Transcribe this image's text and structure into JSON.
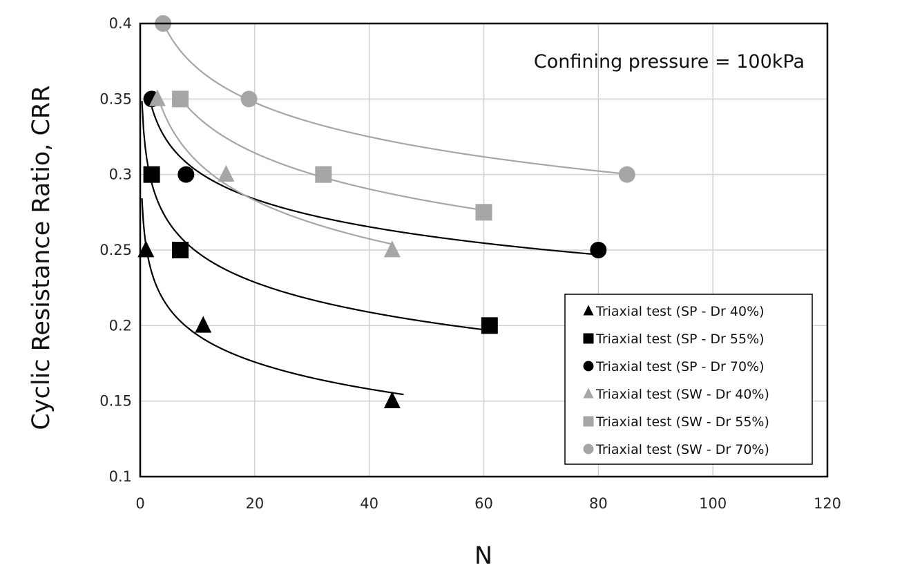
{
  "chart_data": {
    "type": "scatter",
    "title": "",
    "xlabel": "N",
    "ylabel": "Cyclic Resistance Ratio, CRR",
    "xlim": [
      0,
      120
    ],
    "ylim": [
      0.1,
      0.4
    ],
    "x_ticks": [
      "0",
      "20",
      "40",
      "60",
      "80",
      "100",
      "120"
    ],
    "y_ticks": [
      "0.1",
      "0.15",
      "0.2",
      "0.25",
      "0.3",
      "0.35",
      "0.4"
    ],
    "grid": true,
    "legend_position": "bottom-right",
    "annotation": "Confining pressure = 100kPa",
    "series": [
      {
        "name": "Triaxial test (SP - Dr 40%)",
        "marker": "triangle",
        "color": "#000000",
        "points": [
          {
            "x": 1,
            "y": 0.25
          },
          {
            "x": 11,
            "y": 0.2
          },
          {
            "x": 44,
            "y": 0.15
          }
        ],
        "fit_range": [
          0.3,
          46
        ]
      },
      {
        "name": "Triaxial test (SP - Dr 55%)",
        "marker": "square",
        "color": "#000000",
        "points": [
          {
            "x": 2,
            "y": 0.3
          },
          {
            "x": 7,
            "y": 0.25
          },
          {
            "x": 61,
            "y": 0.2
          }
        ],
        "fit_range": [
          0.3,
          61
        ]
      },
      {
        "name": "Triaxial test (SP - Dr 70%)",
        "marker": "circle",
        "color": "#000000",
        "points": [
          {
            "x": 2,
            "y": 0.35
          },
          {
            "x": 8,
            "y": 0.3
          },
          {
            "x": 80,
            "y": 0.25
          }
        ],
        "fit_range": [
          2,
          80
        ]
      },
      {
        "name": "Triaxial test (SW - Dr 40%)",
        "marker": "triangle",
        "color": "#a6a6a6",
        "points": [
          {
            "x": 3,
            "y": 0.35
          },
          {
            "x": 15,
            "y": 0.3
          },
          {
            "x": 44,
            "y": 0.25
          }
        ],
        "fit_range": [
          3,
          44
        ]
      },
      {
        "name": "Triaxial test (SW - Dr 55%)",
        "marker": "square",
        "color": "#a6a6a6",
        "points": [
          {
            "x": 7,
            "y": 0.35
          },
          {
            "x": 32,
            "y": 0.3
          },
          {
            "x": 60,
            "y": 0.275
          }
        ],
        "fit_range": [
          7,
          60
        ]
      },
      {
        "name": "Triaxial test (SW - Dr 70%)",
        "marker": "circle",
        "color": "#a6a6a6",
        "points": [
          {
            "x": 4,
            "y": 0.4
          },
          {
            "x": 19,
            "y": 0.35
          },
          {
            "x": 85,
            "y": 0.3
          }
        ],
        "fit_range": [
          4,
          85
        ]
      }
    ]
  }
}
